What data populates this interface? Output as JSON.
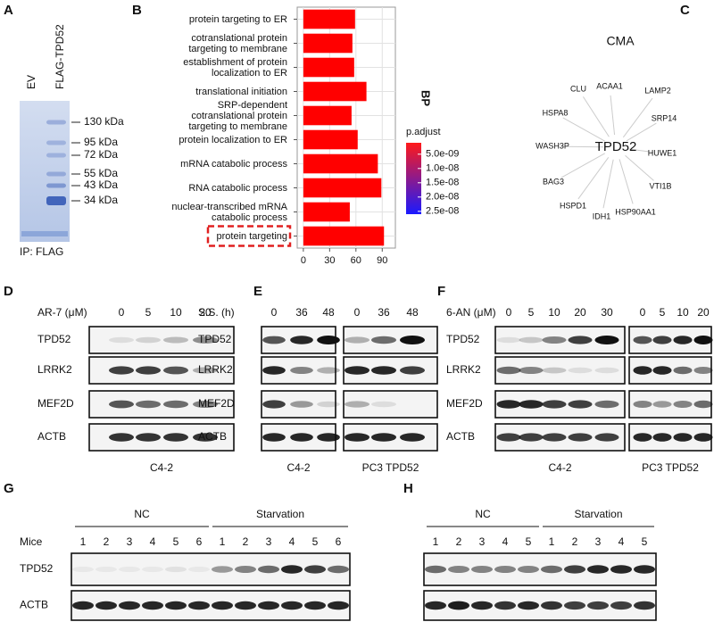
{
  "panels": {
    "A": {
      "letter": "A",
      "lanes": [
        "EV",
        "FLAG-TPD52"
      ],
      "markers": [
        "130 kDa",
        "95 kDa",
        "72 kDa",
        "55 kDa",
        "43 kDa",
        "34 kDa"
      ],
      "footer": "IP: FLAG"
    },
    "B": {
      "letter": "B"
    },
    "C": {
      "letter": "C",
      "title": "CMA",
      "center": "TPD52",
      "nodes": [
        "ACAA1",
        "LAMP2",
        "SRP14",
        "HUWE1",
        "VTI1B",
        "HSP90AA1",
        "IDH1",
        "HSPD1",
        "BAG3",
        "WASH3P",
        "HSPA8",
        "CLU"
      ]
    },
    "D": {
      "letter": "D",
      "treatment": "AR-7 (μM)",
      "lanes": [
        [
          0,
          5,
          10,
          20
        ]
      ],
      "rows": [
        "TPD52",
        "LRRK2",
        "MEF2D",
        "ACTB"
      ],
      "footers": [
        "C4-2"
      ]
    },
    "E": {
      "letter": "E",
      "treatment": "S.S. (h)",
      "lanes": [
        [
          0,
          36,
          48
        ],
        [
          0,
          36,
          48
        ]
      ],
      "rows": [
        "TPD52",
        "LRRK2",
        "MEF2D",
        "ACTB"
      ],
      "footers": [
        "C4-2",
        "PC3 TPD52"
      ]
    },
    "F": {
      "letter": "F",
      "treatment": "6-AN (μM)",
      "lanes": [
        [
          0,
          5,
          10,
          20,
          30
        ],
        [
          0,
          5,
          10,
          20
        ]
      ],
      "rows": [
        "TPD52",
        "LRRK2",
        "MEF2D",
        "ACTB"
      ],
      "footers": [
        "C4-2",
        "PC3 TPD52"
      ]
    },
    "G": {
      "letter": "G",
      "groups": [
        "NC",
        "Starvation"
      ],
      "row_header": "Mice",
      "lanes": [
        [
          1,
          2,
          3,
          4,
          5,
          6,
          1,
          2,
          3,
          4,
          5,
          6
        ]
      ],
      "rows": [
        "TPD52",
        "ACTB"
      ]
    },
    "H": {
      "letter": "H",
      "groups": [
        "NC",
        "Starvation"
      ],
      "lanes": [
        [
          1,
          2,
          3,
          4,
          5,
          1,
          2,
          3,
          4,
          5
        ]
      ]
    }
  },
  "chart_data": {
    "type": "bar",
    "orientation": "horizontal",
    "categories": [
      "protein targeting to ER",
      "cotranslational protein targeting to membrane",
      "establishment of protein localization to ER",
      "translational initiation",
      "SRP-dependent cotranslational protein targeting to membrane",
      "protein localization to ER",
      "mRNA catabolic process",
      "RNA catabolic process",
      "nuclear-transcribed mRNA catabolic process",
      "protein targeting"
    ],
    "values": [
      59,
      56,
      58,
      72,
      55,
      62,
      85,
      89,
      53,
      92
    ],
    "color": "#ff0000",
    "xlim": [
      -7,
      105
    ],
    "xticks": [
      0,
      30,
      60,
      90
    ],
    "grid": true,
    "legend_title": "BP",
    "color_scale": {
      "title": "p.adjust",
      "lim": [
        1e-09,
        2.6e-08
      ],
      "low_color": "#ff1a1a",
      "high_color": "#1a1aff",
      "ticks": [
        {
          "value": 5e-09,
          "label": "5.0e-09"
        },
        {
          "value": 1e-08,
          "label": "1.0e-08"
        },
        {
          "value": 1.5e-08,
          "label": "1.5e-08"
        },
        {
          "value": 2e-08,
          "label": "2.0e-08"
        },
        {
          "value": 2.5e-08,
          "label": "2.5e-08"
        }
      ]
    }
  }
}
